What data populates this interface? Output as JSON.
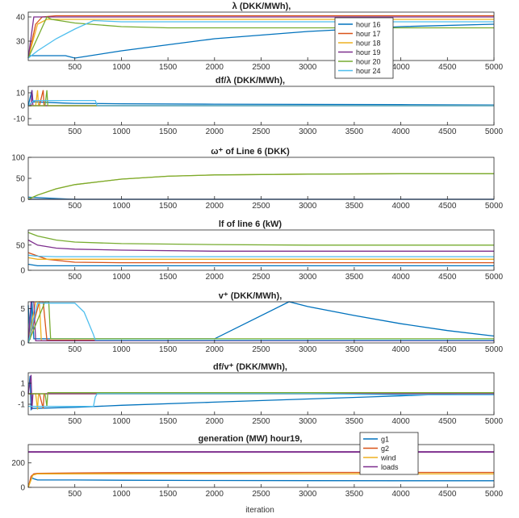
{
  "figure": {
    "xlabel": "iteration",
    "series_colors": [
      "#0072bd",
      "#d95319",
      "#edb120",
      "#7e2f8e",
      "#77ac30",
      "#4dbeee"
    ]
  },
  "chart_data": [
    {
      "type": "line",
      "title": "λ  (DKK/MWh),",
      "xlim": [
        0,
        5000
      ],
      "ylim": [
        22,
        42
      ],
      "yticks": [
        30,
        40
      ],
      "xticks": [
        500,
        1000,
        1500,
        2000,
        2500,
        3000,
        3500,
        4000,
        4500,
        5000
      ],
      "legend": {
        "placement": "top-right",
        "entries": [
          "hour 16",
          "hour 17",
          "hour 18",
          "hour 19",
          "hour 20",
          "hour 24"
        ]
      },
      "series": [
        {
          "name": "hour 16",
          "x": [
            0,
            400,
            500,
            1000,
            2000,
            3000,
            4000,
            5000
          ],
          "y": [
            24,
            24,
            23,
            26,
            31,
            34,
            36,
            37
          ]
        },
        {
          "name": "hour 17",
          "x": [
            0,
            80,
            150,
            300,
            500,
            1000,
            2000,
            3000,
            4000,
            5000
          ],
          "y": [
            23,
            37,
            40,
            40.5,
            40.5,
            40.5,
            40.5,
            40.5,
            40.5,
            40.5
          ]
        },
        {
          "name": "hour 18",
          "x": [
            0,
            100,
            200,
            500,
            1000,
            2000,
            3000,
            4000,
            5000
          ],
          "y": [
            23,
            37,
            39,
            39,
            39,
            39,
            39,
            39,
            39
          ]
        },
        {
          "name": "hour 19",
          "x": [
            0,
            60,
            120,
            200,
            500,
            1000,
            2000,
            3000,
            4000,
            5000
          ],
          "y": [
            23,
            40,
            40,
            40,
            40,
            40,
            40,
            40,
            40,
            40
          ]
        },
        {
          "name": "hour 20",
          "x": [
            0,
            200,
            250,
            500,
            1000,
            1500,
            2000,
            3000,
            4000,
            5000
          ],
          "y": [
            23,
            40,
            39,
            37.5,
            36,
            35.5,
            35.5,
            35.5,
            35.5,
            35.5
          ]
        },
        {
          "name": "hour 24",
          "x": [
            0,
            100,
            300,
            500,
            700,
            1000,
            2000,
            3000,
            4000,
            5000
          ],
          "y": [
            23,
            26,
            31,
            35,
            38.5,
            38,
            38,
            38,
            38,
            38
          ]
        }
      ]
    },
    {
      "type": "line",
      "title": "df/λ  (DKK/MWh),",
      "xlim": [
        0,
        5000
      ],
      "ylim": [
        -15,
        15
      ],
      "yticks": [
        -10,
        0,
        10
      ],
      "xticks": [
        500,
        1000,
        1500,
        2000,
        2500,
        3000,
        3500,
        4000,
        4500,
        5000
      ],
      "series": [
        {
          "x": [
            0,
            40,
            50,
            400,
            500,
            1000,
            2000,
            3000,
            4000,
            5000
          ],
          "y": [
            0,
            12,
            3,
            2,
            1.8,
            1.5,
            1.2,
            1,
            0.8,
            0.5
          ]
        },
        {
          "x": [
            0,
            120,
            160,
            170,
            200,
            5000
          ],
          "y": [
            0,
            0,
            12,
            0,
            0,
            0
          ]
        },
        {
          "x": [
            0,
            80,
            100,
            110,
            140,
            5000
          ],
          "y": [
            0,
            0,
            12,
            0,
            0,
            0
          ]
        },
        {
          "x": [
            0,
            30,
            40,
            50,
            80,
            5000
          ],
          "y": [
            0,
            0,
            12,
            0,
            0,
            0
          ]
        },
        {
          "x": [
            0,
            180,
            200,
            210,
            240,
            5000
          ],
          "y": [
            0,
            0,
            12,
            0,
            0,
            0
          ]
        },
        {
          "x": [
            0,
            60,
            100,
            700,
            720,
            740,
            5000
          ],
          "y": [
            0,
            4,
            4,
            4,
            4,
            0,
            0
          ]
        }
      ]
    },
    {
      "type": "line",
      "title": "ω⁺ of  Line 6 (DKK)",
      "xlim": [
        0,
        5000
      ],
      "ylim": [
        0,
        100
      ],
      "yticks": [
        0,
        50,
        100
      ],
      "xticks": [
        500,
        1000,
        1500,
        2000,
        2500,
        3000,
        3500,
        4000,
        4500,
        5000
      ],
      "series": [
        {
          "x": [
            0,
            100,
            300,
            500,
            1000,
            1500,
            2000,
            3000,
            4000,
            5000
          ],
          "y": [
            5,
            4,
            2,
            0,
            0,
            0,
            0,
            0,
            0,
            0
          ]
        },
        {
          "x": [
            0,
            5000
          ],
          "y": [
            0,
            0
          ]
        },
        {
          "x": [
            0,
            100,
            300,
            500,
            1000,
            1500,
            2000,
            3000,
            4000,
            5000
          ],
          "y": [
            0,
            10,
            25,
            35,
            48,
            55,
            58,
            60,
            61,
            61
          ]
        },
        {
          "x": [
            0,
            5000
          ],
          "y": [
            0,
            0
          ]
        },
        {
          "x": [
            0,
            100,
            300,
            500,
            1000,
            1500,
            2000,
            3000,
            4000,
            5000
          ],
          "y": [
            0,
            10,
            25,
            35,
            48,
            55,
            58,
            60,
            61,
            61
          ]
        },
        {
          "x": [
            0,
            5000
          ],
          "y": [
            0,
            0
          ]
        }
      ]
    },
    {
      "type": "line",
      "title": "lf of line 6 (kW)",
      "xlim": [
        0,
        5000
      ],
      "ylim": [
        0,
        80
      ],
      "yticks": [
        0,
        50
      ],
      "xticks": [
        500,
        1000,
        1500,
        2000,
        2500,
        3000,
        3500,
        4000,
        4500,
        5000
      ],
      "series": [
        {
          "x": [
            0,
            100,
            200,
            5000
          ],
          "y": [
            12,
            9,
            9,
            9
          ]
        },
        {
          "x": [
            0,
            200,
            500,
            1000,
            5000
          ],
          "y": [
            35,
            22,
            16,
            15,
            15
          ]
        },
        {
          "x": [
            0,
            100,
            300,
            5000
          ],
          "y": [
            25,
            22,
            22,
            22
          ]
        },
        {
          "x": [
            0,
            100,
            300,
            500,
            1000,
            2000,
            3000,
            4000,
            5000
          ],
          "y": [
            60,
            50,
            44,
            42,
            40,
            38,
            38,
            38,
            38
          ]
        },
        {
          "x": [
            0,
            100,
            300,
            500,
            1000,
            2000,
            3000,
            4000,
            5000
          ],
          "y": [
            75,
            68,
            60,
            56,
            53,
            51,
            50,
            50,
            50
          ]
        },
        {
          "x": [
            0,
            100,
            300,
            700,
            1000,
            5000
          ],
          "y": [
            30,
            28,
            27,
            27,
            27,
            27
          ]
        }
      ]
    },
    {
      "type": "line",
      "title": "v⁺  (DKK/MWh),",
      "xlim": [
        0,
        5000
      ],
      "ylim": [
        0,
        6
      ],
      "yticks": [
        0,
        5
      ],
      "xticks": [
        500,
        1000,
        1500,
        2000,
        2500,
        3000,
        3500,
        4000,
        4500,
        5000
      ],
      "series": [
        {
          "x": [
            0,
            20,
            40,
            60,
            500,
            1000,
            2000,
            2800,
            3000,
            3500,
            4000,
            4500,
            5000
          ],
          "y": [
            5.5,
            0.5,
            6,
            0.6,
            0.6,
            0.6,
            0.6,
            6,
            5.3,
            4,
            2.8,
            1.8,
            1
          ]
        },
        {
          "x": [
            0,
            120,
            160,
            200,
            5000
          ],
          "y": [
            0,
            6,
            6,
            0.4,
            0.4
          ]
        },
        {
          "x": [
            0,
            80,
            120,
            140,
            5000
          ],
          "y": [
            0,
            6,
            6,
            0.3,
            0.3
          ]
        },
        {
          "x": [
            0,
            30,
            60,
            80,
            5000
          ],
          "y": [
            0,
            6,
            6,
            0.3,
            0.3
          ]
        },
        {
          "x": [
            0,
            180,
            220,
            240,
            5000
          ],
          "y": [
            0,
            6,
            6,
            0.6,
            0.6
          ]
        },
        {
          "x": [
            0,
            100,
            500,
            600,
            700,
            720,
            5000
          ],
          "y": [
            0,
            5.8,
            5.8,
            4.5,
            1.2,
            0.4,
            0.4
          ]
        }
      ]
    },
    {
      "type": "line",
      "title": "df/v⁺  (DKK/MWh),",
      "xlim": [
        0,
        5000
      ],
      "ylim": [
        -2,
        2
      ],
      "yticks": [
        -1,
        0,
        1
      ],
      "xticks": [
        500,
        1000,
        1500,
        2000,
        2500,
        3000,
        3500,
        4000,
        4500,
        5000
      ],
      "series": [
        {
          "x": [
            0,
            20,
            30,
            40,
            500,
            1000,
            2000,
            3000,
            4000,
            4600
          ],
          "y": [
            0,
            1.7,
            -1.5,
            -1.4,
            -1.3,
            -1.1,
            -0.8,
            -0.5,
            -0.2,
            0
          ]
        },
        {
          "x": [
            0,
            120,
            160,
            170,
            5000
          ],
          "y": [
            0,
            0,
            -1.4,
            0,
            0
          ]
        },
        {
          "x": [
            0,
            80,
            100,
            110,
            5000
          ],
          "y": [
            0,
            0,
            -1.5,
            0,
            0
          ]
        },
        {
          "x": [
            0,
            30,
            40,
            50,
            5000
          ],
          "y": [
            0,
            1.8,
            -1.5,
            0,
            0
          ]
        },
        {
          "x": [
            0,
            180,
            200,
            210,
            1000,
            5000
          ],
          "y": [
            0,
            0,
            -1.2,
            0.1,
            0.1,
            0.1
          ]
        },
        {
          "x": [
            0,
            100,
            400,
            700,
            720,
            740,
            1000,
            3000,
            4000,
            5000
          ],
          "y": [
            -1.2,
            -1.2,
            -1.2,
            -1.2,
            -0.3,
            0,
            0,
            0,
            -0.1,
            -0.1
          ]
        }
      ]
    },
    {
      "type": "line",
      "title": "generation  (MW) hour19,",
      "xlim": [
        0,
        5000
      ],
      "ylim": [
        0,
        350
      ],
      "yticks": [
        0,
        200
      ],
      "xticks": [
        500,
        1000,
        1500,
        2000,
        2500,
        3000,
        3500,
        4000,
        4500,
        5000
      ],
      "xlabel": "iteration",
      "legend": {
        "placement": "top-right",
        "entries": [
          "g1",
          "g2",
          "wind",
          "loads"
        ]
      },
      "series": [
        {
          "name": "g1",
          "x": [
            0,
            30,
            60,
            100,
            500,
            1000,
            2000,
            3000,
            4000,
            5000
          ],
          "y": [
            0,
            80,
            70,
            60,
            60,
            58,
            56,
            55,
            54,
            54
          ]
        },
        {
          "name": "g2",
          "x": [
            0,
            30,
            60,
            100,
            500,
            1000,
            2000,
            3000,
            4000,
            5000
          ],
          "y": [
            0,
            90,
            110,
            115,
            118,
            120,
            121,
            122,
            122,
            122
          ]
        },
        {
          "name": "wind",
          "x": [
            0,
            50,
            100,
            5000
          ],
          "y": [
            0,
            100,
            110,
            110
          ]
        },
        {
          "name": "loads",
          "x": [
            0,
            5000
          ],
          "y": [
            290,
            290
          ]
        }
      ]
    }
  ]
}
